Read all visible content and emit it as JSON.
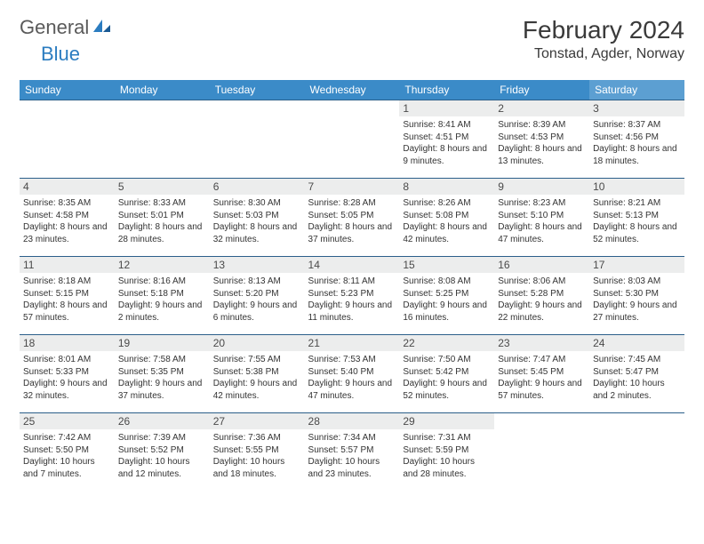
{
  "logo": {
    "word1": "General",
    "word2": "Blue"
  },
  "title": "February 2024",
  "location": "Tonstad, Agder, Norway",
  "colors": {
    "header_bg": "#3b8bc8",
    "header_bg_sat": "#5c9fd2",
    "header_text": "#ffffff",
    "daynum_bg": "#eceded",
    "border": "#2b5f8a",
    "logo_gray": "#5a5a5a",
    "logo_blue": "#2b7cc0"
  },
  "dayNames": [
    "Sunday",
    "Monday",
    "Tuesday",
    "Wednesday",
    "Thursday",
    "Friday",
    "Saturday"
  ],
  "weeks": [
    [
      null,
      null,
      null,
      null,
      {
        "n": "1",
        "sr": "8:41 AM",
        "ss": "4:51 PM",
        "dl": "8 hours and 9 minutes."
      },
      {
        "n": "2",
        "sr": "8:39 AM",
        "ss": "4:53 PM",
        "dl": "8 hours and 13 minutes."
      },
      {
        "n": "3",
        "sr": "8:37 AM",
        "ss": "4:56 PM",
        "dl": "8 hours and 18 minutes."
      }
    ],
    [
      {
        "n": "4",
        "sr": "8:35 AM",
        "ss": "4:58 PM",
        "dl": "8 hours and 23 minutes."
      },
      {
        "n": "5",
        "sr": "8:33 AM",
        "ss": "5:01 PM",
        "dl": "8 hours and 28 minutes."
      },
      {
        "n": "6",
        "sr": "8:30 AM",
        "ss": "5:03 PM",
        "dl": "8 hours and 32 minutes."
      },
      {
        "n": "7",
        "sr": "8:28 AM",
        "ss": "5:05 PM",
        "dl": "8 hours and 37 minutes."
      },
      {
        "n": "8",
        "sr": "8:26 AM",
        "ss": "5:08 PM",
        "dl": "8 hours and 42 minutes."
      },
      {
        "n": "9",
        "sr": "8:23 AM",
        "ss": "5:10 PM",
        "dl": "8 hours and 47 minutes."
      },
      {
        "n": "10",
        "sr": "8:21 AM",
        "ss": "5:13 PM",
        "dl": "8 hours and 52 minutes."
      }
    ],
    [
      {
        "n": "11",
        "sr": "8:18 AM",
        "ss": "5:15 PM",
        "dl": "8 hours and 57 minutes."
      },
      {
        "n": "12",
        "sr": "8:16 AM",
        "ss": "5:18 PM",
        "dl": "9 hours and 2 minutes."
      },
      {
        "n": "13",
        "sr": "8:13 AM",
        "ss": "5:20 PM",
        "dl": "9 hours and 6 minutes."
      },
      {
        "n": "14",
        "sr": "8:11 AM",
        "ss": "5:23 PM",
        "dl": "9 hours and 11 minutes."
      },
      {
        "n": "15",
        "sr": "8:08 AM",
        "ss": "5:25 PM",
        "dl": "9 hours and 16 minutes."
      },
      {
        "n": "16",
        "sr": "8:06 AM",
        "ss": "5:28 PM",
        "dl": "9 hours and 22 minutes."
      },
      {
        "n": "17",
        "sr": "8:03 AM",
        "ss": "5:30 PM",
        "dl": "9 hours and 27 minutes."
      }
    ],
    [
      {
        "n": "18",
        "sr": "8:01 AM",
        "ss": "5:33 PM",
        "dl": "9 hours and 32 minutes."
      },
      {
        "n": "19",
        "sr": "7:58 AM",
        "ss": "5:35 PM",
        "dl": "9 hours and 37 minutes."
      },
      {
        "n": "20",
        "sr": "7:55 AM",
        "ss": "5:38 PM",
        "dl": "9 hours and 42 minutes."
      },
      {
        "n": "21",
        "sr": "7:53 AM",
        "ss": "5:40 PM",
        "dl": "9 hours and 47 minutes."
      },
      {
        "n": "22",
        "sr": "7:50 AM",
        "ss": "5:42 PM",
        "dl": "9 hours and 52 minutes."
      },
      {
        "n": "23",
        "sr": "7:47 AM",
        "ss": "5:45 PM",
        "dl": "9 hours and 57 minutes."
      },
      {
        "n": "24",
        "sr": "7:45 AM",
        "ss": "5:47 PM",
        "dl": "10 hours and 2 minutes."
      }
    ],
    [
      {
        "n": "25",
        "sr": "7:42 AM",
        "ss": "5:50 PM",
        "dl": "10 hours and 7 minutes."
      },
      {
        "n": "26",
        "sr": "7:39 AM",
        "ss": "5:52 PM",
        "dl": "10 hours and 12 minutes."
      },
      {
        "n": "27",
        "sr": "7:36 AM",
        "ss": "5:55 PM",
        "dl": "10 hours and 18 minutes."
      },
      {
        "n": "28",
        "sr": "7:34 AM",
        "ss": "5:57 PM",
        "dl": "10 hours and 23 minutes."
      },
      {
        "n": "29",
        "sr": "7:31 AM",
        "ss": "5:59 PM",
        "dl": "10 hours and 28 minutes."
      },
      null,
      null
    ]
  ],
  "labels": {
    "sunrise": "Sunrise: ",
    "sunset": "Sunset: ",
    "daylight": "Daylight: "
  }
}
